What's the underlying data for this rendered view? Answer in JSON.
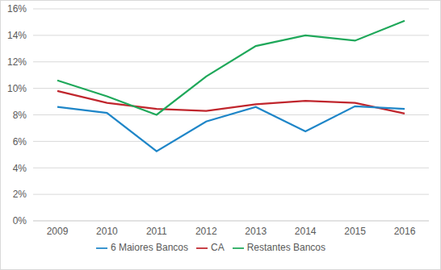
{
  "chart_data": {
    "type": "line",
    "categories": [
      "2009",
      "2010",
      "2011",
      "2012",
      "2013",
      "2014",
      "2015",
      "2016"
    ],
    "series": [
      {
        "name": "CA",
        "color": "#c0262d",
        "values": [
          9.8,
          8.9,
          8.45,
          8.3,
          8.8,
          9.05,
          8.9,
          8.1
        ]
      },
      {
        "name": "6 Maiores Bancos",
        "color": "#1f86c8",
        "values": [
          8.6,
          8.15,
          5.25,
          7.5,
          8.6,
          6.75,
          8.65,
          8.45
        ]
      },
      {
        "name": "Restantes Bancos",
        "color": "#1fa85a",
        "values": [
          10.6,
          9.4,
          8.0,
          10.9,
          13.2,
          14.0,
          13.6,
          15.1
        ]
      }
    ],
    "ylim": [
      0,
      16
    ],
    "yticks": [
      {
        "value": 0,
        "label": "0%"
      },
      {
        "value": 2,
        "label": "2%"
      },
      {
        "value": 4,
        "label": "4%"
      },
      {
        "value": 6,
        "label": "6%"
      },
      {
        "value": 8,
        "label": "8%"
      },
      {
        "value": 10,
        "label": "10%"
      },
      {
        "value": 12,
        "label": "12%"
      },
      {
        "value": 14,
        "label": "14%"
      },
      {
        "value": 16,
        "label": "16%"
      }
    ],
    "grid": true,
    "legend": "bottom"
  }
}
